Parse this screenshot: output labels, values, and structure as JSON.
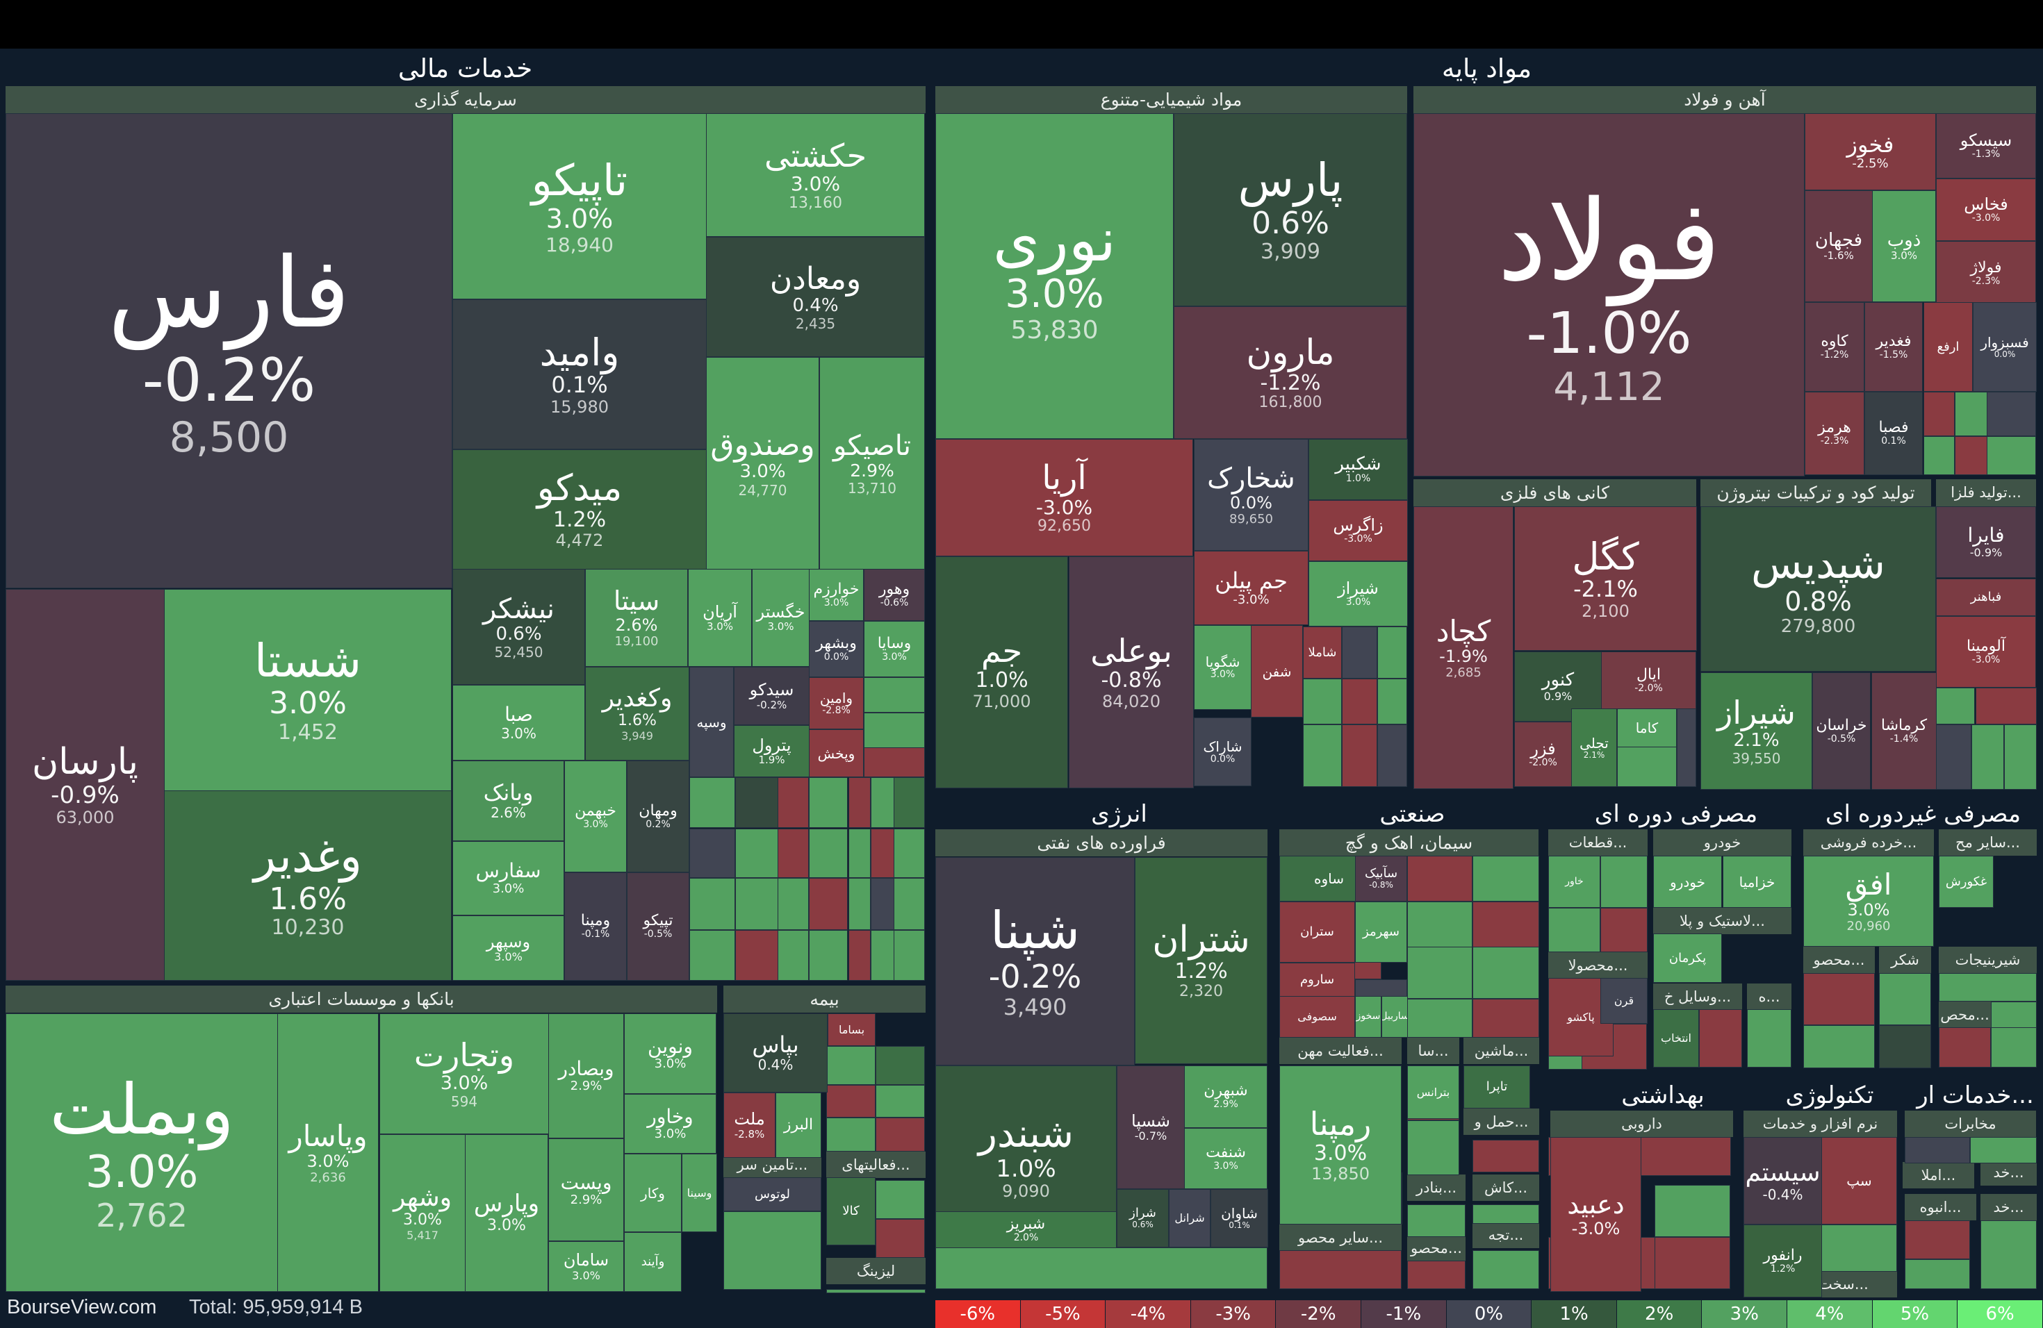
{
  "footer": {
    "brand": "BourseView.com",
    "total": "Total: 95,959,914 B"
  },
  "legend": [
    {
      "label": "-6%",
      "color": "#e8302b"
    },
    {
      "label": "-5%",
      "color": "#c43636"
    },
    {
      "label": "-4%",
      "color": "#a53a3d"
    },
    {
      "label": "-3%",
      "color": "#8a3b41"
    },
    {
      "label": "-2%",
      "color": "#6f3a44"
    },
    {
      "label": "-1%",
      "color": "#533b4a"
    },
    {
      "label": "0%",
      "color": "#414553"
    },
    {
      "label": "1%",
      "color": "#35583d"
    },
    {
      "label": "2%",
      "color": "#3e7a48"
    },
    {
      "label": "3%",
      "color": "#53a160"
    },
    {
      "label": "4%",
      "color": "#5fbe6b"
    },
    {
      "label": "5%",
      "color": "#63d56f"
    },
    {
      "label": "6%",
      "color": "#6aee76"
    }
  ],
  "sectors": [
    {
      "label": "خدمات مالی"
    },
    {
      "label": "مواد پایه"
    },
    {
      "label": "انرژی"
    },
    {
      "label": "صنعتی"
    },
    {
      "label": "مصرفی دوره ای"
    },
    {
      "label": "مصرفی غیردوره ای"
    },
    {
      "label": "بهداشتی"
    },
    {
      "label": "تکنولوژی"
    },
    {
      "label": "خدمات ار..."
    }
  ],
  "industries": [
    {
      "label": "سرمایه گذاری"
    },
    {
      "label": "بانکها و موسسات اعتباری"
    },
    {
      "label": "بیمه"
    },
    {
      "label": "تامین سر..."
    },
    {
      "label": "فعالیتهای..."
    },
    {
      "label": "لیزینگ"
    },
    {
      "label": "مواد شیمیایی-متنوع"
    },
    {
      "label": "آهن و فولاد"
    },
    {
      "label": "کانی های فلزی"
    },
    {
      "label": "تولید کود و ترکیبات نیتروژن"
    },
    {
      "label": "تولید فلزا..."
    },
    {
      "label": "فراورده های نفتی"
    },
    {
      "label": "سیمان، اهک و گچ"
    },
    {
      "label": "فعالیت مهن..."
    },
    {
      "label": "ماشین..."
    },
    {
      "label": "سا..."
    },
    {
      "label": "سایر محصو..."
    },
    {
      "label": "بنادر..."
    },
    {
      "label": "کاش..."
    },
    {
      "label": "حمل و..."
    },
    {
      "label": "تجه..."
    },
    {
      "label": "محصو..."
    },
    {
      "label": "قطعات..."
    },
    {
      "label": "خودرو"
    },
    {
      "label": "لاستیک و پلا..."
    },
    {
      "label": "محصولا..."
    },
    {
      "label": "وسایل خ..."
    },
    {
      "label": "ه..."
    },
    {
      "label": "خرده فروشی..."
    },
    {
      "label": "سایر مح..."
    },
    {
      "label": "محصو..."
    },
    {
      "label": "شکر"
    },
    {
      "label": "شیرینیجات"
    },
    {
      "label": "محص..."
    },
    {
      "label": "داروبی"
    },
    {
      "label": "نرم افزار و خدمات"
    },
    {
      "label": "مخابرات"
    },
    {
      "label": "خد..."
    },
    {
      "label": "املا..."
    },
    {
      "label": "انبوه..."
    },
    {
      "label": "خد..."
    },
    {
      "label": "سخت افزار و..."
    }
  ],
  "stocks": [
    {
      "symbol": "فارس",
      "change": "-0.2%",
      "value": "8,500",
      "color": "#3f3c49"
    },
    {
      "symbol": "تاپیکو",
      "change": "3.0%",
      "value": "18,940",
      "color": "#53a160"
    },
    {
      "symbol": "حکشتی",
      "change": "3.0%",
      "value": "13,160",
      "color": "#53a160"
    },
    {
      "symbol": "ومعادن",
      "change": "0.4%",
      "value": "2,435",
      "color": "#34493e"
    },
    {
      "symbol": "وامید",
      "change": "0.1%",
      "value": "15,980",
      "color": "#373f45"
    },
    {
      "symbol": "وصندوق",
      "change": "3.0%",
      "value": "24,770",
      "color": "#53a160"
    },
    {
      "symbol": "تاصیکو",
      "change": "2.9%",
      "value": "13,710",
      "color": "#519e5e"
    },
    {
      "symbol": "میدکو",
      "change": "1.2%",
      "value": "4,472",
      "color": "#39633f"
    },
    {
      "symbol": "پارسان",
      "change": "-0.9%",
      "value": "63,000",
      "color": "#543b4a"
    },
    {
      "symbol": "شستا",
      "change": "3.0%",
      "value": "1,452",
      "color": "#53a160"
    },
    {
      "symbol": "وغدیر",
      "change": "1.6%",
      "value": "10,230",
      "color": "#3c6f45"
    },
    {
      "symbol": "نیشکر",
      "change": "0.6%",
      "value": "52,450",
      "color": "#344d3e"
    },
    {
      "symbol": "سیتا",
      "change": "2.6%",
      "value": "19,100",
      "color": "#4d9459"
    },
    {
      "symbol": "آریان",
      "change": "3.0%",
      "value": "",
      "color": "#53a160"
    },
    {
      "symbol": "خگستر",
      "change": "3.0%",
      "value": "",
      "color": "#53a160"
    },
    {
      "symbol": "خوارزم",
      "change": "3.0%",
      "value": "",
      "color": "#53a160"
    },
    {
      "symbol": "وهور",
      "change": "-0.6%",
      "value": "",
      "color": "#4c3b49"
    },
    {
      "symbol": "وبشهر",
      "change": "0.0%",
      "value": "",
      "color": "#414553"
    },
    {
      "symbol": "وسایا",
      "change": "3.0%",
      "value": "",
      "color": "#53a160"
    },
    {
      "symbol": "صبا",
      "change": "3.0%",
      "value": "",
      "color": "#53a160"
    },
    {
      "symbol": "وکغدیر",
      "change": "1.6%",
      "value": "3,949",
      "color": "#3c6f45"
    },
    {
      "symbol": "وسپه",
      "change": "",
      "value": "",
      "color": "#414553"
    },
    {
      "symbol": "سیدکو",
      "change": "-0.2%",
      "value": "",
      "color": "#3f3c49"
    },
    {
      "symbol": "وامین",
      "change": "-2.8%",
      "value": "",
      "color": "#873b41"
    },
    {
      "symbol": "پترول",
      "change": "1.9%",
      "value": "",
      "color": "#3f7748"
    },
    {
      "symbol": "وبانک",
      "change": "2.6%",
      "value": "",
      "color": "#4d9459"
    },
    {
      "symbol": "خبهمن",
      "change": "3.0%",
      "value": "",
      "color": "#53a160"
    },
    {
      "symbol": "ومهان",
      "change": "0.2%",
      "value": "",
      "color": "#374542"
    },
    {
      "symbol": "وپخش",
      "change": "",
      "value": "",
      "color": "#8a3b41"
    },
    {
      "symbol": "سفارس",
      "change": "3.0%",
      "value": "",
      "color": "#53a160"
    },
    {
      "symbol": "ومپنا",
      "change": "-0.1%",
      "value": "",
      "color": "#403e4c"
    },
    {
      "symbol": "تپیکو",
      "change": "-0.5%",
      "value": "",
      "color": "#4a3b48"
    },
    {
      "symbol": "وسپهر",
      "change": "3.0%",
      "value": "",
      "color": "#53a160"
    },
    {
      "symbol": "وبملت",
      "change": "3.0%",
      "value": "2,762",
      "color": "#53a160"
    },
    {
      "symbol": "وپاسار",
      "change": "3.0%",
      "value": "2,636",
      "color": "#53a160"
    },
    {
      "symbol": "وتجارت",
      "change": "3.0%",
      "value": "594",
      "color": "#53a160"
    },
    {
      "symbol": "وبصادر",
      "change": "2.9%",
      "value": "",
      "color": "#519e5e"
    },
    {
      "symbol": "ونوین",
      "change": "3.0%",
      "value": "",
      "color": "#53a160"
    },
    {
      "symbol": "وخاور",
      "change": "3.0%",
      "value": "",
      "color": "#53a160"
    },
    {
      "symbol": "وشهر",
      "change": "3.0%",
      "value": "5,417",
      "color": "#53a160"
    },
    {
      "symbol": "وپارس",
      "change": "3.0%",
      "value": "",
      "color": "#53a160"
    },
    {
      "symbol": "وپست",
      "change": "2.9%",
      "value": "",
      "color": "#519e5e"
    },
    {
      "symbol": "وکار",
      "change": "",
      "value": "",
      "color": "#53a160"
    },
    {
      "symbol": "وسینا",
      "change": "",
      "value": "",
      "color": "#53a160"
    },
    {
      "symbol": "سامان",
      "change": "3.0%",
      "value": "",
      "color": "#53a160"
    },
    {
      "symbol": "وآیند",
      "change": "",
      "value": "",
      "color": "#53a160"
    },
    {
      "symbol": "بپاس",
      "change": "0.4%",
      "value": "",
      "color": "#34493e"
    },
    {
      "symbol": "بساما",
      "change": "",
      "value": "",
      "color": "#8a3b41"
    },
    {
      "symbol": "ملت",
      "change": "-2.8%",
      "value": "",
      "color": "#873b41"
    },
    {
      "symbol": "البرز",
      "change": "",
      "value": "",
      "color": "#53a160"
    },
    {
      "symbol": "لوتوس",
      "change": "",
      "value": "",
      "color": "#414553"
    },
    {
      "symbol": "کالا",
      "change": "",
      "value": "",
      "color": "#3c6f45"
    },
    {
      "symbol": "نوری",
      "change": "3.0%",
      "value": "53,830",
      "color": "#53a160"
    },
    {
      "symbol": "پارس",
      "change": "0.6%",
      "value": "3,909",
      "color": "#344d3e"
    },
    {
      "symbol": "مارون",
      "change": "-1.2%",
      "value": "161,800",
      "color": "#5e3a47"
    },
    {
      "symbol": "آریا",
      "change": "-3.0%",
      "value": "92,650",
      "color": "#8a3b41"
    },
    {
      "symbol": "شخارک",
      "change": "0.0%",
      "value": "89,650",
      "color": "#414553"
    },
    {
      "symbol": "شکبیر",
      "change": "1.0%",
      "value": "",
      "color": "#35583d"
    },
    {
      "symbol": "زاگرس",
      "change": "-3.0%",
      "value": "",
      "color": "#8a3b41"
    },
    {
      "symbol": "جم پیلن",
      "change": "-3.0%",
      "value": "",
      "color": "#8a3b41"
    },
    {
      "symbol": "شیراز",
      "change": "3.0%",
      "value": "",
      "color": "#53a160"
    },
    {
      "symbol": "جم",
      "change": "1.0%",
      "value": "71,000",
      "color": "#35583d"
    },
    {
      "symbol": "بوعلی",
      "change": "-0.8%",
      "value": "84,020",
      "color": "#4f3b4a"
    },
    {
      "symbol": "شگویا",
      "change": "3.0%",
      "value": "",
      "color": "#53a160"
    },
    {
      "symbol": "شفن",
      "change": "",
      "value": "",
      "color": "#8a3b41"
    },
    {
      "symbol": "شاملا",
      "change": "",
      "value": "",
      "color": "#8a3b41"
    },
    {
      "symbol": "شاراک",
      "change": "0.0%",
      "value": "",
      "color": "#414553"
    },
    {
      "symbol": "فولاد",
      "change": "-1.0%",
      "value": "4,112",
      "color": "#5b3a47"
    },
    {
      "symbol": "فخوز",
      "change": "-2.5%",
      "value": "",
      "color": "#823b42"
    },
    {
      "symbol": "سیسکو",
      "change": "-1.3%",
      "value": "",
      "color": "#5e3a47"
    },
    {
      "symbol": "فخاس",
      "change": "-3.0%",
      "value": "",
      "color": "#8a3b41"
    },
    {
      "symbol": "فجهان",
      "change": "-1.6%",
      "value": "",
      "color": "#663a46"
    },
    {
      "symbol": "ذوب",
      "change": "3.0%",
      "value": "",
      "color": "#53a160"
    },
    {
      "symbol": "فولاژ",
      "change": "-2.3%",
      "value": "",
      "color": "#7b3b43"
    },
    {
      "symbol": "کاوه",
      "change": "-1.2%",
      "value": "",
      "color": "#5e3a47"
    },
    {
      "symbol": "فغدیر",
      "change": "-1.5%",
      "value": "",
      "color": "#643a46"
    },
    {
      "symbol": "ارفع",
      "change": "",
      "value": "",
      "color": "#8a3b41"
    },
    {
      "symbol": "فسبزوار",
      "change": "0.0%",
      "value": "",
      "color": "#414553"
    },
    {
      "symbol": "هرمز",
      "change": "-2.3%",
      "value": "",
      "color": "#7b3b43"
    },
    {
      "symbol": "فصبا",
      "change": "0.1%",
      "value": "",
      "color": "#373f45"
    },
    {
      "symbol": "کچاد",
      "change": "-1.9%",
      "value": "2,685",
      "color": "#713a45"
    },
    {
      "symbol": "کگل",
      "change": "-2.1%",
      "value": "2,100",
      "color": "#763b44"
    },
    {
      "symbol": "کنور",
      "change": "0.9%",
      "value": "",
      "color": "#35553d"
    },
    {
      "symbol": "ایال",
      "change": "-2.0%",
      "value": "",
      "color": "#743b44"
    },
    {
      "symbol": "فزر",
      "change": "-2.0%",
      "value": "",
      "color": "#743b44"
    },
    {
      "symbol": "تجلی",
      "change": "2.1%",
      "value": "",
      "color": "#417e4a"
    },
    {
      "symbol": "کاما",
      "change": "",
      "value": "",
      "color": "#53a160"
    },
    {
      "symbol": "شپدیس",
      "change": "0.8%",
      "value": "279,800",
      "color": "#35523e"
    },
    {
      "symbol": "شیراز",
      "change": "2.1%",
      "value": "39,550",
      "color": "#417e4a"
    },
    {
      "symbol": "خراسان",
      "change": "-0.5%",
      "value": "",
      "color": "#4a3b48"
    },
    {
      "symbol": "کرماشا",
      "change": "-1.4%",
      "value": "",
      "color": "#623a46"
    },
    {
      "symbol": "فایرا",
      "change": "-0.9%",
      "value": "",
      "color": "#543b4a"
    },
    {
      "symbol": "فباهنر",
      "change": "",
      "value": "",
      "color": "#7b3b43"
    },
    {
      "symbol": "آلومینا",
      "change": "-3.0%",
      "value": "",
      "color": "#8a3b41"
    },
    {
      "symbol": "شپنا",
      "change": "-0.2%",
      "value": "3,490",
      "color": "#3f3c49"
    },
    {
      "symbol": "شتران",
      "change": "1.2%",
      "value": "2,320",
      "color": "#39633f"
    },
    {
      "symbol": "شبندر",
      "change": "1.0%",
      "value": "9,090",
      "color": "#35583d"
    },
    {
      "symbol": "شسپا",
      "change": "-0.7%",
      "value": "",
      "color": "#4d3b49"
    },
    {
      "symbol": "شبهرن",
      "change": "2.9%",
      "value": "",
      "color": "#519e5e"
    },
    {
      "symbol": "شنفت",
      "change": "3.0%",
      "value": "",
      "color": "#53a160"
    },
    {
      "symbol": "شبریز",
      "change": "2.0%",
      "value": "",
      "color": "#3e7a48"
    },
    {
      "symbol": "شراز",
      "change": "0.6%",
      "value": "",
      "color": "#344d3e"
    },
    {
      "symbol": "شرانل",
      "change": "",
      "value": "",
      "color": "#414553"
    },
    {
      "symbol": "شاوان",
      "change": "0.1%",
      "value": "",
      "color": "#373f45"
    },
    {
      "symbol": "ساوه",
      "change": "",
      "value": "",
      "color": "#3c6f45"
    },
    {
      "symbol": "سآبیک",
      "change": "-0.8%",
      "value": "",
      "color": "#4f3b4a"
    },
    {
      "symbol": "ستران",
      "change": "",
      "value": "",
      "color": "#8a3b41"
    },
    {
      "symbol": "سهرمز",
      "change": "",
      "value": "",
      "color": "#53a160"
    },
    {
      "symbol": "ساروم",
      "change": "",
      "value": "",
      "color": "#8a3b41"
    },
    {
      "symbol": "سصوفی",
      "change": "",
      "value": "",
      "color": "#8a3b41"
    },
    {
      "symbol": "سخوز",
      "change": "",
      "value": "",
      "color": "#53a160"
    },
    {
      "symbol": "ساربیل",
      "change": "",
      "value": "",
      "color": "#53a160"
    },
    {
      "symbol": "رمپنا",
      "change": "3.0%",
      "value": "13,850",
      "color": "#53a160"
    },
    {
      "symbol": "تاپرا",
      "change": "",
      "value": "",
      "color": "#3c6f45"
    },
    {
      "symbol": "بترانس",
      "change": "",
      "value": "",
      "color": "#53a160"
    },
    {
      "symbol": "خودرو",
      "change": "",
      "value": "",
      "color": "#53a160"
    },
    {
      "symbol": "خاور",
      "change": "",
      "value": "",
      "color": "#53a160"
    },
    {
      "symbol": "خزامیا",
      "change": "",
      "value": "",
      "color": "#53a160"
    },
    {
      "symbol": "پکرمان",
      "change": "",
      "value": "",
      "color": "#53a160"
    },
    {
      "symbol": "پاکشو",
      "change": "",
      "value": "",
      "color": "#8a3b41"
    },
    {
      "symbol": "قرن",
      "change": "",
      "value": "",
      "color": "#414553"
    },
    {
      "symbol": "انتخاب",
      "change": "",
      "value": "",
      "color": "#3c6f45"
    },
    {
      "symbol": "افق",
      "change": "3.0%",
      "value": "20,960",
      "color": "#53a160"
    },
    {
      "symbol": "غکورش",
      "change": "",
      "value": "",
      "color": "#53a160"
    },
    {
      "symbol": "دعبید",
      "change": "-3.0%",
      "value": "",
      "color": "#8a3b41"
    },
    {
      "symbol": "سیستم",
      "change": "-0.4%",
      "value": "",
      "color": "#473b48"
    },
    {
      "symbol": "سپ",
      "change": "",
      "value": "",
      "color": "#8a3b41"
    },
    {
      "symbol": "رانفور",
      "change": "1.2%",
      "value": "",
      "color": "#39633f"
    }
  ]
}
